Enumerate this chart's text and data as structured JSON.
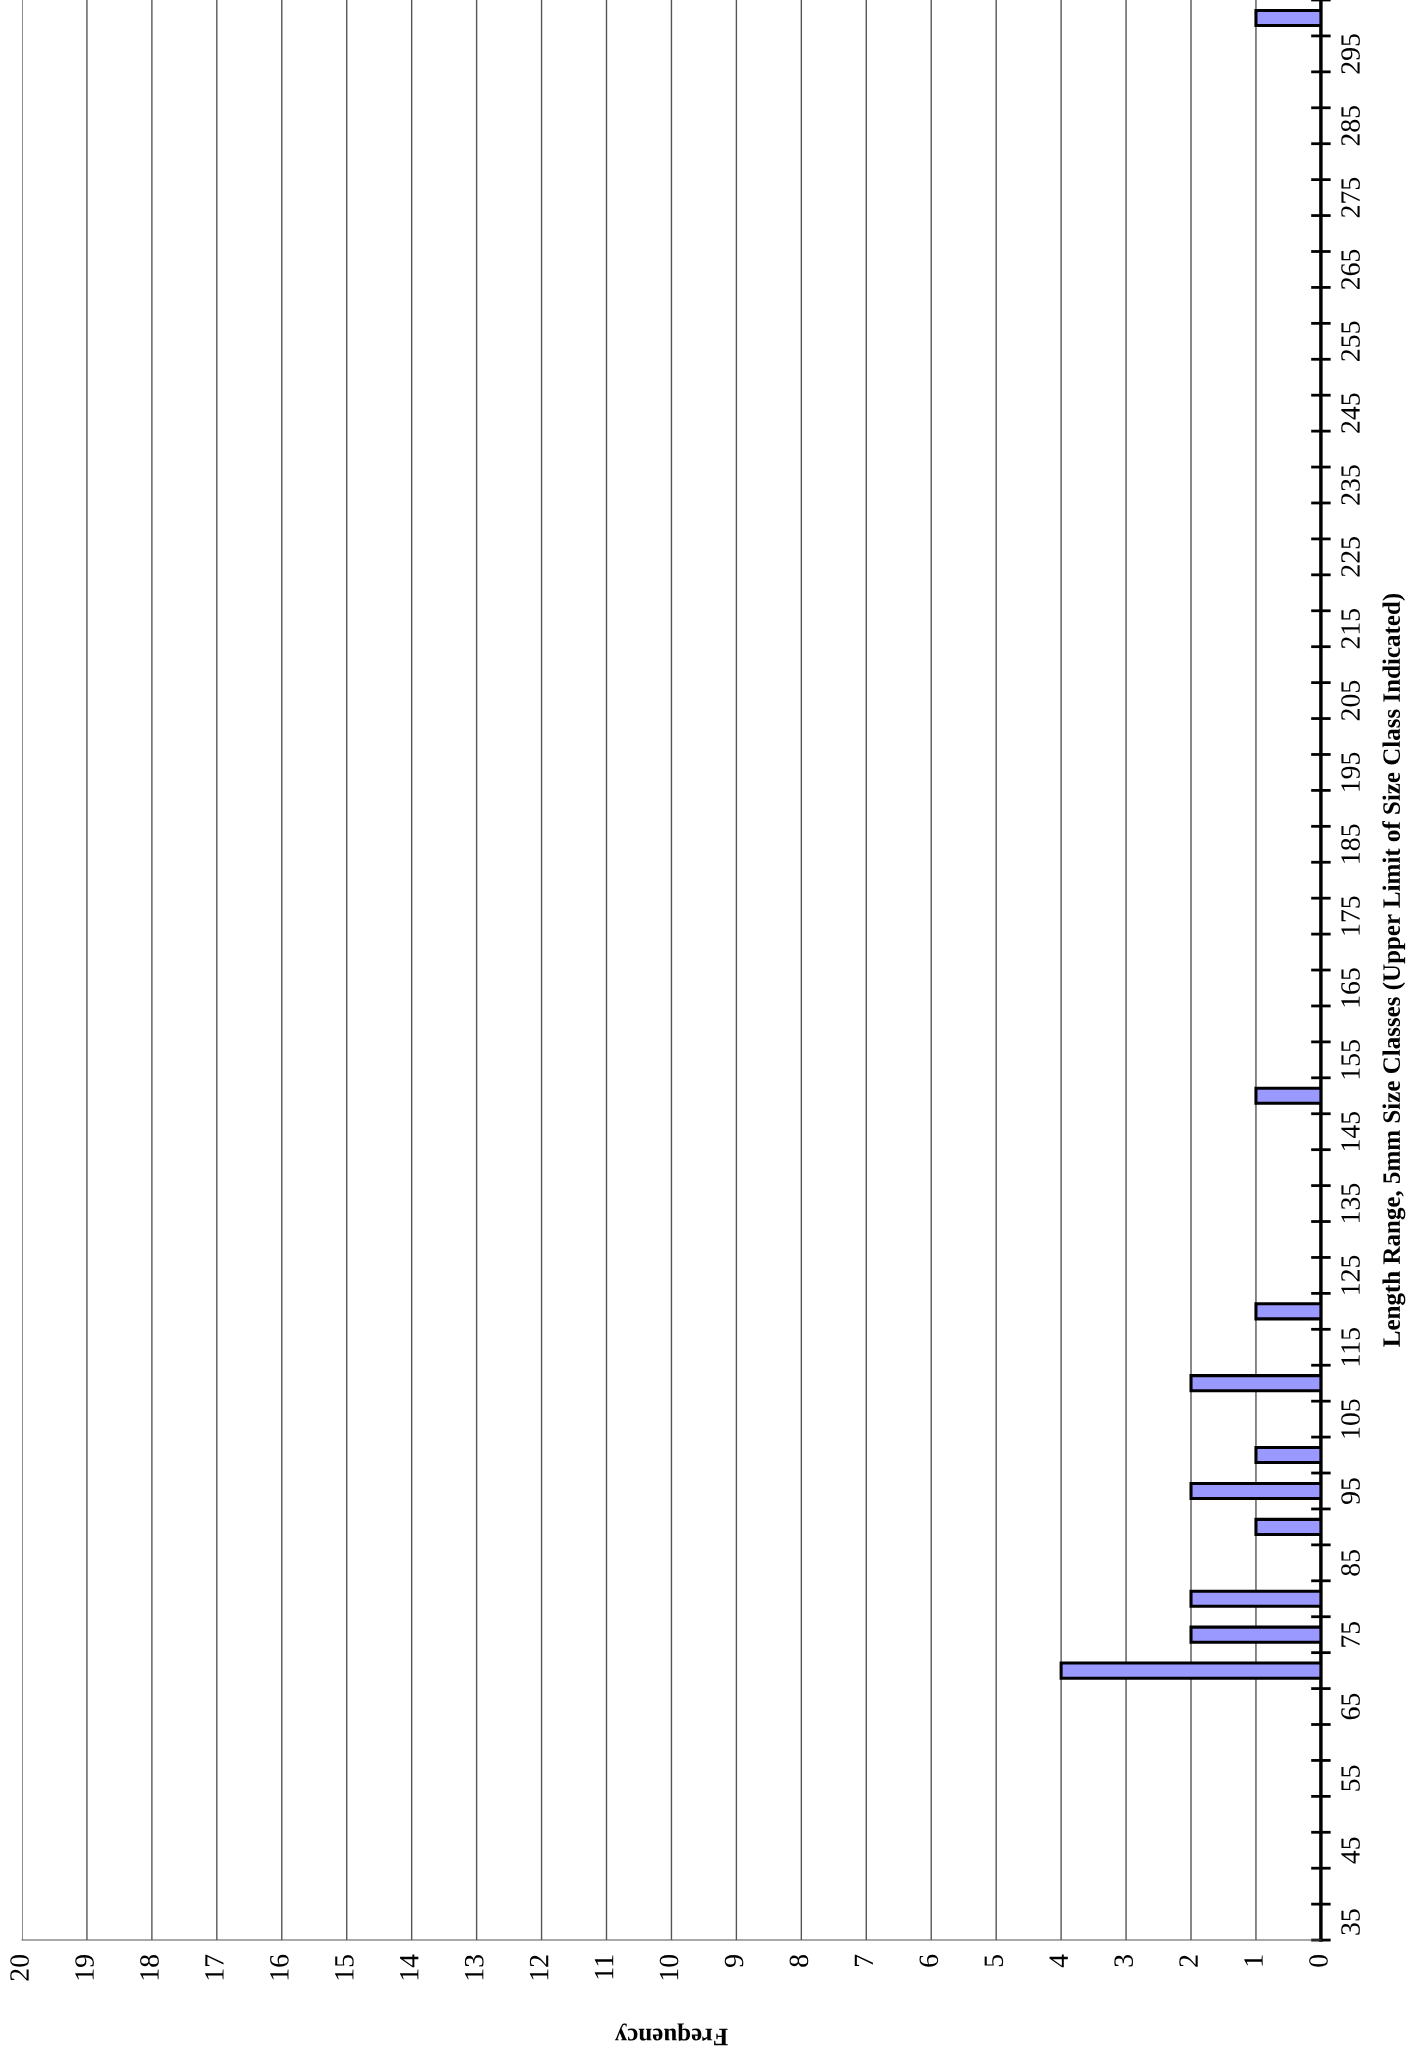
{
  "chart_data": {
    "type": "bar",
    "orientation": "horizontal",
    "xlabel": "Frequency",
    "ylabel": "Length Range, 5mm Size Classes (Upper Limit of Size Class Indicated)",
    "categories": [
      null,
      "295",
      null,
      "285",
      null,
      "275",
      null,
      "265",
      null,
      "255",
      null,
      "245",
      null,
      "235",
      null,
      "225",
      null,
      "215",
      null,
      "205",
      null,
      "195",
      null,
      "185",
      null,
      "175",
      null,
      "165",
      null,
      "155",
      null,
      "145",
      null,
      "135",
      null,
      "125",
      null,
      "115",
      null,
      "105",
      null,
      "95",
      null,
      "85",
      null,
      "75",
      null,
      "65",
      null,
      "55",
      null,
      "45",
      null,
      "35"
    ],
    "values": [
      1,
      0,
      0,
      0,
      0,
      0,
      0,
      0,
      0,
      0,
      0,
      0,
      0,
      0,
      0,
      0,
      0,
      0,
      0,
      0,
      0,
      0,
      0,
      0,
      0,
      0,
      0,
      0,
      0,
      0,
      1,
      0,
      0,
      0,
      0,
      0,
      1,
      0,
      2,
      0,
      1,
      2,
      1,
      0,
      2,
      2,
      4,
      0,
      0,
      0,
      0,
      0,
      0,
      0
    ],
    "color": "#9999ff",
    "xlim": [
      20,
      0
    ],
    "xticks": [
      0,
      1,
      2,
      3,
      4,
      5,
      6,
      7,
      8,
      9,
      10,
      11,
      12,
      13,
      14,
      15,
      16,
      17,
      18,
      19,
      20
    ],
    "grid": "x"
  }
}
